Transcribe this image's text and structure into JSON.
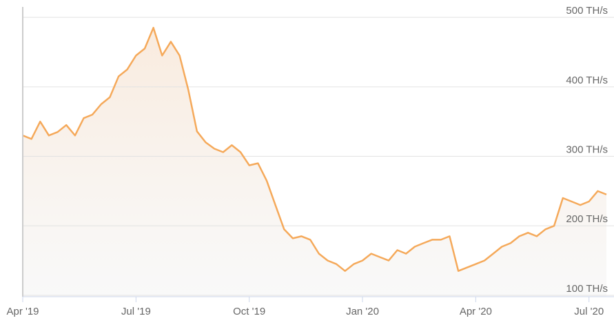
{
  "chart_data": {
    "type": "line",
    "categories": [
      "Apr '19",
      null,
      null,
      null,
      null,
      null,
      null,
      null,
      null,
      null,
      null,
      null,
      null,
      "Jul '19",
      null,
      null,
      null,
      null,
      null,
      null,
      null,
      null,
      null,
      null,
      null,
      null,
      "Oct '19",
      null,
      null,
      null,
      null,
      null,
      null,
      null,
      null,
      null,
      null,
      null,
      null,
      "Jan '20",
      null,
      null,
      null,
      null,
      null,
      null,
      null,
      null,
      null,
      null,
      null,
      null,
      "Apr '20",
      null,
      null,
      null,
      null,
      null,
      null,
      null,
      null,
      null,
      null,
      null,
      null,
      "Jul '20",
      null,
      null
    ],
    "series": [
      {
        "color": "#f5a95a",
        "values": [
          330,
          325,
          350,
          330,
          335,
          345,
          330,
          355,
          360,
          375,
          385,
          415,
          425,
          445,
          455,
          485,
          445,
          465,
          445,
          396,
          336,
          320,
          311,
          306,
          316,
          306,
          287,
          290,
          265,
          230,
          195,
          182,
          185,
          180,
          160,
          150,
          145,
          135,
          145,
          150,
          160,
          155,
          150,
          165,
          160,
          170,
          175,
          180,
          180,
          185,
          135,
          140,
          145,
          150,
          160,
          170,
          175,
          185,
          190,
          185,
          195,
          200,
          240,
          235,
          230,
          235,
          250,
          245
        ]
      }
    ],
    "ylim": [
      98,
      515
    ],
    "yticks": [
      {
        "value": 100,
        "label": "100 TH/s"
      },
      {
        "value": 200,
        "label": "200 TH/s"
      },
      {
        "value": 300,
        "label": "300 TH/s"
      },
      {
        "value": 400,
        "label": "400 TH/s"
      },
      {
        "value": 500,
        "label": "500 TH/s"
      }
    ],
    "grid": true
  }
}
